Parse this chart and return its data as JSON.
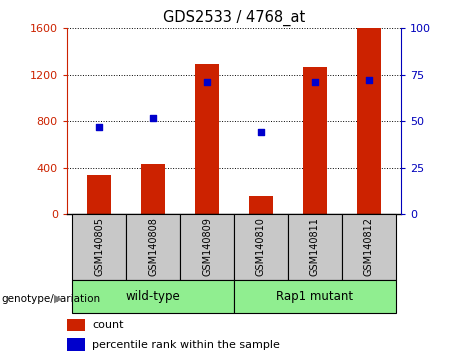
{
  "title": "GDS2533 / 4768_at",
  "samples": [
    "GSM140805",
    "GSM140808",
    "GSM140809",
    "GSM140810",
    "GSM140811",
    "GSM140812"
  ],
  "counts": [
    340,
    430,
    1290,
    155,
    1270,
    1600
  ],
  "percentile_ranks": [
    47,
    52,
    71,
    44,
    71,
    72
  ],
  "group_defs": [
    {
      "label": "wild-type",
      "start": 0,
      "end": 2,
      "color": "#90EE90"
    },
    {
      "label": "Rap1 mutant",
      "start": 3,
      "end": 5,
      "color": "#90EE90"
    }
  ],
  "group_label": "genotype/variation",
  "bar_color": "#CC2200",
  "dot_color": "#0000CC",
  "left_ylim": [
    0,
    1600
  ],
  "right_ylim": [
    0,
    100
  ],
  "left_yticks": [
    0,
    400,
    800,
    1200,
    1600
  ],
  "right_yticks": [
    0,
    25,
    50,
    75,
    100
  ],
  "bar_width": 0.45,
  "ylabel_left_color": "#CC2200",
  "ylabel_right_color": "#0000BB",
  "bg_label": "#C8C8C8",
  "bg_group": "#90EE90",
  "legend_count_label": "count",
  "legend_pct_label": "percentile rank within the sample"
}
